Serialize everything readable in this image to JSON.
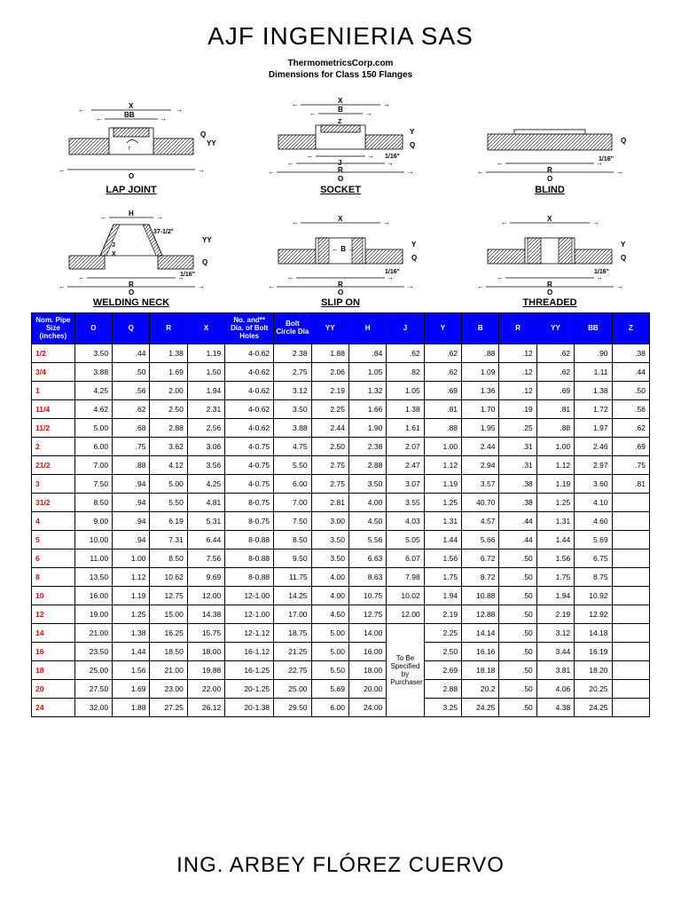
{
  "title": "AJF INGENIERIA SAS",
  "subtitle1": "ThermometricsCorp.com",
  "subtitle2": "Dimensions for Class 150 Flanges",
  "footer": "ING. ARBEY FLÓREZ CUERVO",
  "diagrams": {
    "labels": [
      "LAP JOINT",
      "SOCKET",
      "BLIND",
      "WELDING NECK",
      "SLIP ON",
      "THREADED"
    ]
  },
  "table": {
    "header_bg": "#0000ff",
    "header_fg": "#ffffff",
    "size_color": "#ff0000",
    "columns": [
      "Nom. Pipe Size (inches)",
      "O",
      "Q",
      "R",
      "X",
      "No. and** Dia. of Bolt Holes",
      "Bolt Circle Dia",
      "YY",
      "H",
      "J",
      "Y",
      "B",
      "R",
      "YY",
      "BB",
      "Z"
    ],
    "merged_note": "To Be Specified by Purchaser",
    "rows": [
      {
        "size": "1/2",
        "c": [
          "3.50",
          ".44",
          "1.38",
          "1.19",
          "4-0.62",
          "2.38",
          "1.88",
          ".84",
          ".62",
          ".62",
          ".88",
          ".12",
          ".62",
          ".90",
          ".38"
        ]
      },
      {
        "size": "3/4",
        "c": [
          "3.88",
          ".50",
          "1.69",
          "1.50",
          "4-0.62",
          "2.75",
          "2.06",
          "1.05",
          ".82",
          ".62",
          "1.09",
          ".12",
          ".62",
          "1.11",
          ".44"
        ]
      },
      {
        "size": "1",
        "c": [
          "4.25",
          ".56",
          "2.00",
          "1.94",
          "4-0.62",
          "3.12",
          "2.19",
          "1.32",
          "1.05",
          ".69",
          "1.36",
          ".12",
          ".69",
          "1.38",
          ".50"
        ]
      },
      {
        "size": "11/4",
        "c": [
          "4.62",
          ".62",
          "2.50",
          "2.31",
          "4-0.62",
          "3.50",
          "2.25",
          "1.66",
          "1.38",
          ".81",
          "1.70",
          ".19",
          ".81",
          "1.72",
          ".56"
        ]
      },
      {
        "size": "11/2",
        "c": [
          "5.00",
          ".68",
          "2.88",
          "2.56",
          "4-0.62",
          "3.88",
          "2.44",
          "1.90",
          "1.61",
          ".88",
          "1.95",
          ".25",
          ".88",
          "1.97",
          ".62"
        ]
      },
      {
        "size": "2",
        "c": [
          "6.00",
          ".75",
          "3.62",
          "3.06",
          "4-0.75",
          "4.75",
          "2.50",
          "2.38",
          "2.07",
          "1.00",
          "2.44",
          ".31",
          "1.00",
          "2.46",
          ".69"
        ]
      },
      {
        "size": "21/2",
        "c": [
          "7.00",
          ".88",
          "4.12",
          "3.56",
          "4-0.75",
          "5.50",
          "2.75",
          "2.88",
          "2.47",
          "1.12",
          "2.94",
          ".31",
          "1.12",
          "2.97",
          ".75"
        ]
      },
      {
        "size": "3",
        "c": [
          "7.50",
          ".94",
          "5.00",
          "4.25",
          "4-0.75",
          "6.00",
          "2.75",
          "3.50",
          "3.07",
          "1.19",
          "3.57",
          ".38",
          "1.19",
          "3.60",
          ".81"
        ]
      },
      {
        "size": "31/2",
        "c": [
          "8.50",
          ".94",
          "5.50",
          "4.81",
          "8-0.75",
          "7.00",
          "2.81",
          "4.00",
          "3.55",
          "1.25",
          "40.70",
          ".38",
          "1.25",
          "4.10",
          ""
        ]
      },
      {
        "size": "4",
        "c": [
          "9.00",
          ".94",
          "6.19",
          "5.31",
          "8-0.75",
          "7.50",
          "3.00",
          "4.50",
          "4.03",
          "1.31",
          "4.57",
          ".44",
          "1.31",
          "4.60",
          ""
        ]
      },
      {
        "size": "5",
        "c": [
          "10.00",
          ".94",
          "7.31",
          "6.44",
          "8-0.88",
          "8.50",
          "3.50",
          "5.56",
          "5.05",
          "1.44",
          "5.66",
          ".44",
          "1.44",
          "5.69",
          ""
        ]
      },
      {
        "size": "6",
        "c": [
          "11.00",
          "1.00",
          "8.50",
          "7.56",
          "8-0.88",
          "9.50",
          "3.50",
          "6.63",
          "6.07",
          "1.56",
          "6.72",
          ".50",
          "1.56",
          "6.75",
          ""
        ]
      },
      {
        "size": "8",
        "c": [
          "13.50",
          "1.12",
          "10.62",
          "9.69",
          "8-0.88",
          "11.75",
          "4.00",
          "8.63",
          "7.98",
          "1.75",
          "8.72",
          ".50",
          "1.75",
          "8.75",
          ""
        ]
      },
      {
        "size": "10",
        "c": [
          "16.00",
          "1.19",
          "12.75",
          "12.00",
          "12-1.00",
          "14.25",
          "4.00",
          "10.75",
          "10.02",
          "1.94",
          "10.88",
          ".50",
          "1.94",
          "10.92",
          ""
        ]
      },
      {
        "size": "12",
        "c": [
          "19.00",
          "1.25",
          "15.00",
          "14.38",
          "12-1.00",
          "17.00",
          "4.50",
          "12.75",
          "12.00",
          "2.19",
          "12.88",
          ".50",
          "2.19",
          "12.92",
          ""
        ]
      },
      {
        "size": "14",
        "c": [
          "21.00",
          "1.38",
          "16.25",
          "15.75",
          "12-1.12",
          "18.75",
          "5.00",
          "14.00",
          "MERGE",
          "2.25",
          "14.14",
          ".50",
          "3.12",
          "14.18",
          ""
        ]
      },
      {
        "size": "16",
        "c": [
          "23.50",
          "1.44",
          "18.50",
          "18.00",
          "16-1.12",
          "21.25",
          "5.00",
          "16.00",
          "MERGE",
          "2.50",
          "16.16",
          ".50",
          "3.44",
          "16.19",
          ""
        ]
      },
      {
        "size": "18",
        "c": [
          "25.00",
          "1.56",
          "21.00",
          "19.88",
          "16-1.25",
          "22.75",
          "5.50",
          "18.00",
          "MERGE",
          "2.69",
          "18.18",
          ".50",
          "3.81",
          "18.20",
          ""
        ]
      },
      {
        "size": "20",
        "c": [
          "27.50",
          "1.69",
          "23.00",
          "22.00",
          "20-1.25",
          "25.00",
          "5.69",
          "20.00",
          "MERGE",
          "2.88",
          "20.2",
          ".50",
          "4.06",
          "20.25",
          ""
        ]
      },
      {
        "size": "24",
        "c": [
          "32.00",
          "1.88",
          "27.25",
          "26.12",
          "20-1.38",
          "29.50",
          "6.00",
          "24.00",
          "MERGE",
          "3.25",
          "24.25",
          ".50",
          "4.38",
          "24.25",
          ""
        ]
      }
    ]
  }
}
